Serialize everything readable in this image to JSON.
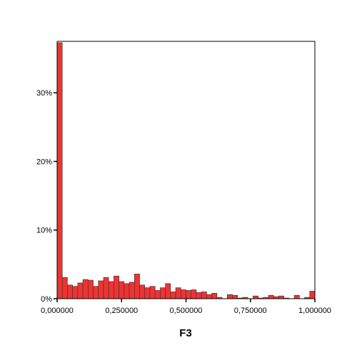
{
  "chart_data": {
    "type": "bar",
    "title": "",
    "xlabel": "F3",
    "ylabel": "",
    "xlim": [
      0,
      1
    ],
    "ylim": [
      0,
      37.5
    ],
    "bin_width": 0.02,
    "grid": false,
    "legend": "none",
    "bar_color": "#ee3333",
    "bar_edge_color": "#333333",
    "x_ticks": [
      {
        "value": 0,
        "label": "0,000000"
      },
      {
        "value": 0.25,
        "label": "0,250000"
      },
      {
        "value": 0.5,
        "label": "0,500000"
      },
      {
        "value": 0.75,
        "label": "0,750000"
      },
      {
        "value": 1,
        "label": "1,000000"
      }
    ],
    "y_ticks": [
      {
        "value": 0,
        "label": "0%"
      },
      {
        "value": 10,
        "label": "10%"
      },
      {
        "value": 20,
        "label": "20%"
      },
      {
        "value": 30,
        "label": "30%"
      }
    ],
    "bins_start": [
      0,
      0.02,
      0.04,
      0.06,
      0.08,
      0.1,
      0.12,
      0.14,
      0.16,
      0.18,
      0.2,
      0.22,
      0.24,
      0.26,
      0.28,
      0.3,
      0.32,
      0.34,
      0.36,
      0.38,
      0.4,
      0.42,
      0.44,
      0.46,
      0.48,
      0.5,
      0.52,
      0.54,
      0.56,
      0.58,
      0.6,
      0.62,
      0.64,
      0.66,
      0.68,
      0.7,
      0.72,
      0.74,
      0.76,
      0.78,
      0.8,
      0.82,
      0.84,
      0.86,
      0.88,
      0.9,
      0.92,
      0.94,
      0.96,
      0.98
    ],
    "values": [
      37.3,
      3.1,
      2.0,
      1.8,
      2.3,
      2.8,
      2.7,
      1.8,
      2.6,
      3.1,
      2.5,
      3.3,
      2.5,
      2.2,
      2.4,
      3.6,
      2.0,
      1.6,
      1.8,
      1.2,
      1.6,
      2.2,
      1.0,
      1.6,
      1.3,
      1.2,
      1.3,
      0.9,
      1.0,
      0.6,
      0.8,
      0.2,
      0.0,
      0.6,
      0.5,
      0.1,
      0.2,
      0.0,
      0.4,
      0.1,
      0.2,
      0.5,
      0.3,
      0.4,
      0.1,
      0.0,
      0.5,
      0.0,
      0.2,
      1.1
    ]
  }
}
